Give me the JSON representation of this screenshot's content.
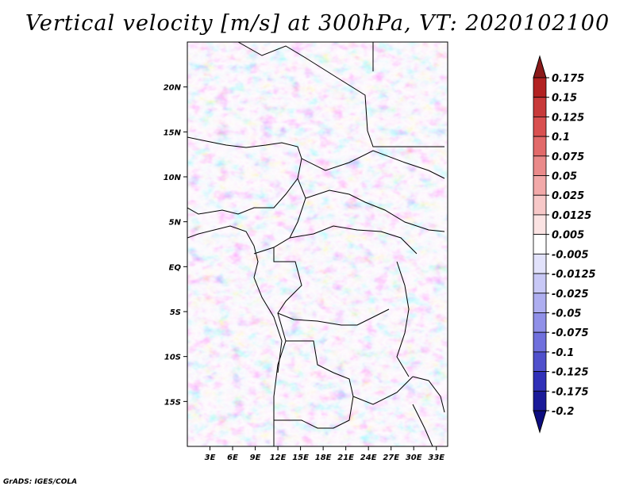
{
  "chart_data": {
    "type": "heatmap",
    "title": "Vertical velocity [m/s] at 300hPa, VT: 2020102100",
    "variable": "Vertical velocity",
    "units": "m/s",
    "level": "300hPa",
    "valid_time": "2020102100",
    "x_ticks": [
      "3E",
      "6E",
      "9E",
      "12E",
      "15E",
      "18E",
      "21E",
      "24E",
      "27E",
      "30E",
      "33E"
    ],
    "x_tick_values": [
      3,
      6,
      9,
      12,
      15,
      18,
      21,
      24,
      27,
      30,
      33
    ],
    "y_ticks": [
      "20N",
      "15N",
      "10N",
      "5N",
      "EQ",
      "5S",
      "10S",
      "15S"
    ],
    "y_tick_values": [
      20,
      15,
      10,
      5,
      0,
      -5,
      -10,
      -15
    ],
    "xlim": [
      0,
      34.5
    ],
    "ylim": [
      -20,
      25
    ],
    "colorbar": {
      "levels": [
        "0.175",
        "0.15",
        "0.125",
        "0.1",
        "0.075",
        "0.05",
        "0.025",
        "0.0125",
        "0.005",
        "-0.005",
        "-0.0125",
        "-0.025",
        "-0.05",
        "-0.075",
        "-0.1",
        "-0.125",
        "-0.175",
        "-0.2"
      ],
      "colors": [
        "#8b1a1a",
        "#b22222",
        "#c83a3a",
        "#d95050",
        "#e26a6a",
        "#ea8a8a",
        "#f2a9a9",
        "#f7c8c8",
        "#fbe3e3",
        "#ffffff",
        "#e2e2fb",
        "#c8c8f6",
        "#aeaef0",
        "#9090e8",
        "#7070dd",
        "#5050cc",
        "#3030b8",
        "#1a1a99",
        "#0d0d80"
      ],
      "orientation": "vertical",
      "extend": "both"
    }
  },
  "credit": "GrADS: IGES/COLA"
}
